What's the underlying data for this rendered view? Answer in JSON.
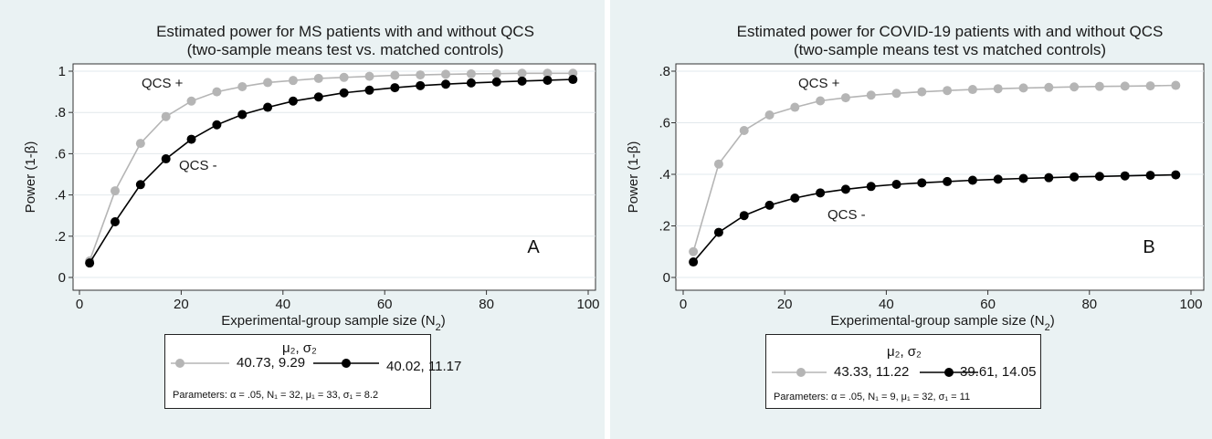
{
  "chart_data": [
    {
      "type": "line",
      "panel_letter": "A",
      "title": "Estimated power for MS patients with and without QCS",
      "subtitle": "(two-sample means test vs. matched controls)",
      "xlabel": "Experimental-group sample size (N",
      "xlabel_sub": "2",
      "xlabel_end": ")",
      "ylabel": "Power (1-β)",
      "xlim": [
        0,
        100
      ],
      "ylim": [
        0,
        1
      ],
      "xticks": [
        0,
        20,
        40,
        60,
        80,
        100
      ],
      "xtick_labels": [
        "0",
        "20",
        "40",
        "60",
        "80",
        "100"
      ],
      "yticks": [
        0,
        0.2,
        0.4,
        0.6,
        0.8,
        1
      ],
      "ytick_labels": [
        "0",
        ".2",
        ".4",
        ".6",
        ".8",
        "1"
      ],
      "grid": true,
      "x": [
        2,
        7,
        12,
        17,
        22,
        27,
        32,
        37,
        42,
        47,
        52,
        57,
        62,
        67,
        72,
        77,
        82,
        87,
        92,
        97
      ],
      "series": [
        {
          "name": "40.73, 9.29",
          "color": "#b5b5b5",
          "values": [
            0.08,
            0.42,
            0.65,
            0.78,
            0.855,
            0.9,
            0.925,
            0.945,
            0.955,
            0.965,
            0.97,
            0.975,
            0.98,
            0.982,
            0.985,
            0.987,
            0.988,
            0.99,
            0.99,
            0.99
          ]
        },
        {
          "name": "40.02, 11.17",
          "color": "#000000",
          "values": [
            0.07,
            0.27,
            0.45,
            0.575,
            0.67,
            0.74,
            0.79,
            0.825,
            0.855,
            0.875,
            0.895,
            0.908,
            0.92,
            0.93,
            0.937,
            0.943,
            0.948,
            0.952,
            0.956,
            0.96
          ]
        }
      ],
      "annotations": {
        "qcs_plus": "QCS +",
        "qcs_minus": "QCS -"
      },
      "legend_title": "μ₂, σ₂",
      "legend_note": "Parameters: α = .05, N₁ = 32, μ₁ = 33, σ₁ = 8.2"
    },
    {
      "type": "line",
      "panel_letter": "B",
      "title": "Estimated power for COVID-19 patients with and without QCS",
      "subtitle": "(two-sample means test vs matched controls)",
      "xlabel": "Experimental-group sample size (N",
      "xlabel_sub": "2",
      "xlabel_end": ")",
      "ylabel": "Power (1-β)",
      "xlim": [
        0,
        100
      ],
      "ylim": [
        0,
        0.8
      ],
      "xticks": [
        0,
        20,
        40,
        60,
        80,
        100
      ],
      "xtick_labels": [
        "0",
        "20",
        "40",
        "60",
        "80",
        "100"
      ],
      "yticks": [
        0,
        0.2,
        0.4,
        0.6,
        0.8
      ],
      "ytick_labels": [
        "0",
        ".2",
        ".4",
        ".6",
        ".8"
      ],
      "grid": true,
      "x": [
        2,
        7,
        12,
        17,
        22,
        27,
        32,
        37,
        42,
        47,
        52,
        57,
        62,
        67,
        72,
        77,
        82,
        87,
        92,
        97
      ],
      "series": [
        {
          "name": "43.33, 11.22",
          "color": "#b5b5b5",
          "values": [
            0.1,
            0.44,
            0.57,
            0.63,
            0.66,
            0.685,
            0.697,
            0.707,
            0.714,
            0.72,
            0.725,
            0.729,
            0.732,
            0.735,
            0.737,
            0.739,
            0.741,
            0.742,
            0.743,
            0.745
          ]
        },
        {
          "name": "39.61, 14.05",
          "color": "#000000",
          "values": [
            0.06,
            0.175,
            0.24,
            0.28,
            0.308,
            0.328,
            0.342,
            0.353,
            0.361,
            0.367,
            0.372,
            0.377,
            0.381,
            0.384,
            0.387,
            0.39,
            0.392,
            0.394,
            0.396,
            0.398
          ]
        }
      ],
      "annotations": {
        "qcs_plus": "QCS +",
        "qcs_minus": "QCS -"
      },
      "legend_title": "μ₂, σ₂",
      "legend_note": "Parameters: α = .05, N₁ = 9, μ₁ = 32, σ₁ = 11"
    }
  ]
}
